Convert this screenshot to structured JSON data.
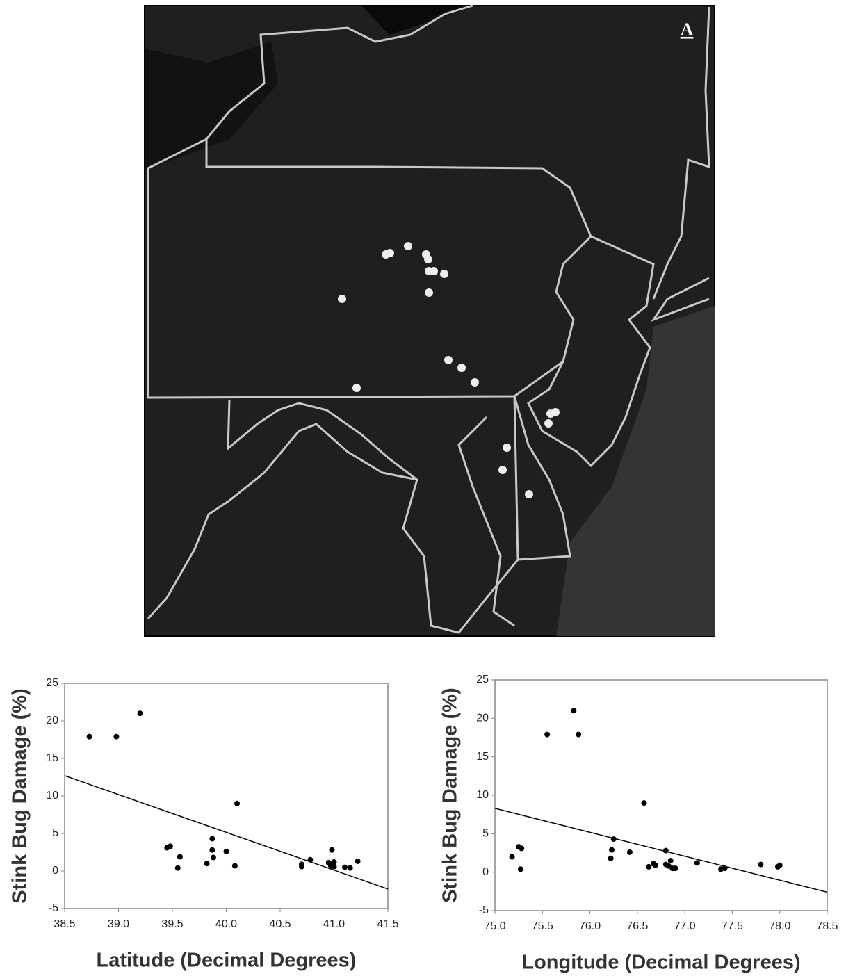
{
  "map": {
    "panel_label": "A"
  },
  "chart_data": [
    {
      "type": "scatter",
      "x_label": "Latitude (Decimal Degrees)",
      "y_label": "Stink Bug Damage (%)",
      "x": [
        38.73,
        38.98,
        39.2,
        39.45,
        39.48,
        39.55,
        39.57,
        39.82,
        39.87,
        39.87,
        39.88,
        40.0,
        40.08,
        40.1,
        40.7,
        40.7,
        40.78,
        40.95,
        40.97,
        40.98,
        41.0,
        41.0,
        41.1,
        41.15,
        41.22
      ],
      "values": [
        17.9,
        17.9,
        21,
        3.1,
        3.3,
        0.4,
        1.9,
        1.0,
        4.3,
        2.8,
        1.8,
        2.6,
        0.7,
        9.0,
        0.6,
        0.9,
        1.5,
        1.1,
        0.7,
        2.8,
        0.6,
        1.2,
        0.5,
        0.4,
        1.3
      ],
      "color": "#000000",
      "trend": {
        "x": [
          38.5,
          41.5
        ],
        "values": [
          12.7,
          -2.4
        ]
      },
      "xlim": [
        38.5,
        41.5
      ],
      "xticks": [
        38.5,
        {
          "value": 39,
          "label": "39.0"
        },
        39.5,
        {
          "value": 40,
          "label": "40.0"
        },
        40.5,
        {
          "value": 41,
          "label": "41.0"
        },
        41.5
      ],
      "ylim": [
        -5,
        25
      ],
      "yticks": [
        -5,
        0,
        5,
        10,
        15,
        20,
        25
      ],
      "grid": false
    },
    {
      "type": "scatter",
      "x_label": "Longitude (Decimal Degrees)",
      "y_label": "Stink Bug Damage (%)",
      "x": [
        75.18,
        75.25,
        75.28,
        75.27,
        75.55,
        75.83,
        75.88,
        76.22,
        76.23,
        76.25,
        76.42,
        76.57,
        76.62,
        76.67,
        76.69,
        76.8,
        76.8,
        76.83,
        76.85,
        76.87,
        76.9,
        77.13,
        77.38,
        77.42,
        77.8,
        77.98,
        78.0
      ],
      "values": [
        2.0,
        3.3,
        3.1,
        0.4,
        17.9,
        21,
        17.9,
        1.8,
        2.9,
        4.3,
        2.6,
        9.0,
        0.7,
        1.1,
        0.9,
        2.8,
        1.0,
        0.8,
        1.5,
        0.5,
        0.5,
        1.2,
        0.4,
        0.5,
        1.0,
        0.7,
        0.9
      ],
      "color": "#000000",
      "trend": {
        "x": [
          75.0,
          78.5
        ],
        "values": [
          8.3,
          -2.6
        ]
      },
      "xlim": [
        75,
        78.5
      ],
      "xticks": [
        {
          "value": 75,
          "label": "75.0"
        },
        75.5,
        {
          "value": 76,
          "label": "76.0"
        },
        76.5,
        {
          "value": 77,
          "label": "77.0"
        },
        77.5,
        {
          "value": 78,
          "label": "78.0"
        },
        78.5
      ],
      "ylim": [
        -5,
        25
      ],
      "yticks": [
        -5,
        0,
        5,
        10,
        15,
        20,
        25
      ],
      "grid": false
    }
  ]
}
